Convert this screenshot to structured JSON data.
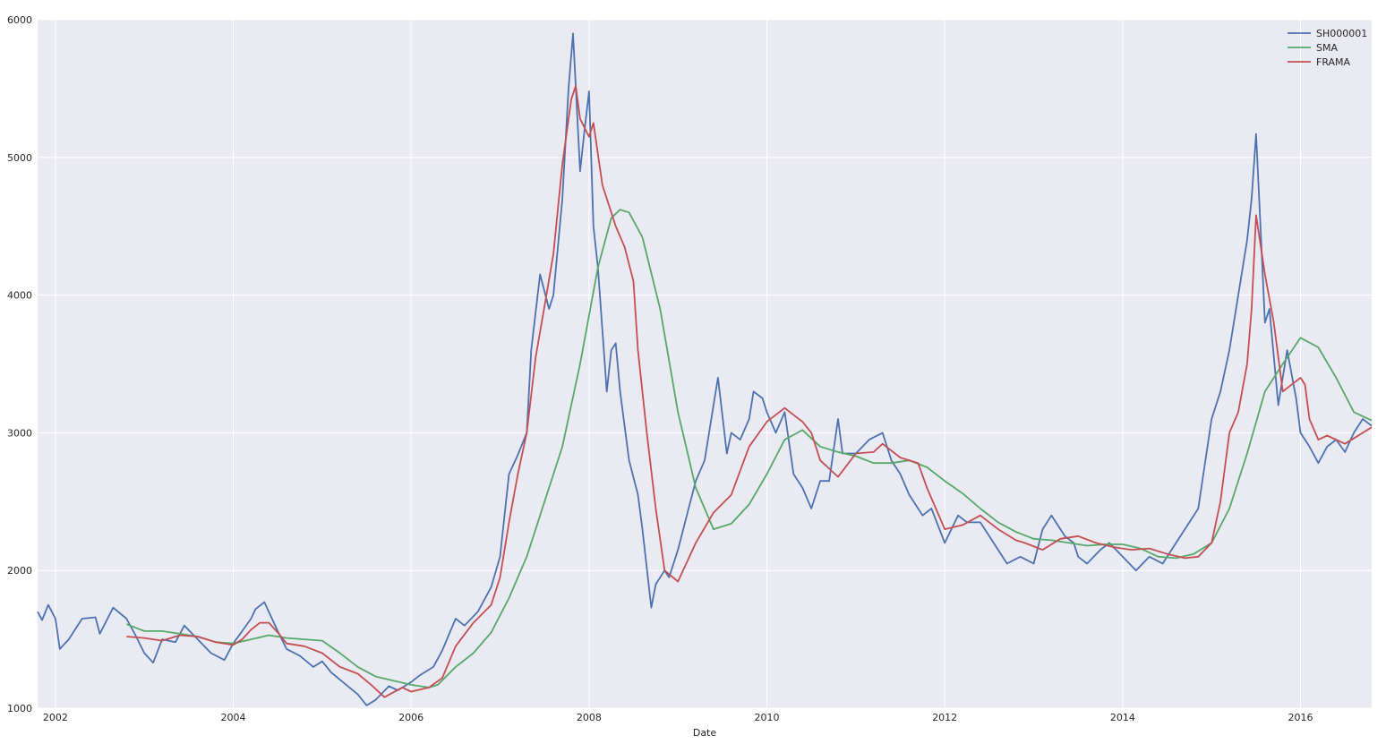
{
  "chart_data": {
    "type": "line",
    "title": "",
    "xlabel": "Date",
    "ylabel": "",
    "xlim": [
      2001.8,
      2016.8
    ],
    "ylim": [
      1000,
      6000
    ],
    "x_ticks": [
      2002,
      2004,
      2006,
      2008,
      2010,
      2012,
      2014,
      2016
    ],
    "x_tick_labels": [
      "2002",
      "2004",
      "2006",
      "2008",
      "2010",
      "2012",
      "2014",
      "2016"
    ],
    "y_ticks": [
      1000,
      2000,
      3000,
      4000,
      5000,
      6000
    ],
    "y_tick_labels": [
      "1000",
      "2000",
      "3000",
      "4000",
      "5000",
      "6000"
    ],
    "grid": true,
    "legend_position": "top-right",
    "series": [
      {
        "name": "SH000001",
        "color": "#4c72b0",
        "x": [
          2001.8,
          2001.85,
          2001.92,
          2002.0,
          2002.05,
          2002.15,
          2002.3,
          2002.45,
          2002.5,
          2002.65,
          2002.8,
          2002.9,
          2003.0,
          2003.1,
          2003.2,
          2003.35,
          2003.45,
          2003.6,
          2003.75,
          2003.9,
          2004.0,
          2004.1,
          2004.2,
          2004.25,
          2004.35,
          2004.5,
          2004.6,
          2004.75,
          2004.9,
          2005.0,
          2005.1,
          2005.25,
          2005.4,
          2005.5,
          2005.6,
          2005.75,
          2005.85,
          2006.0,
          2006.1,
          2006.25,
          2006.35,
          2006.5,
          2006.6,
          2006.75,
          2006.9,
          2007.0,
          2007.1,
          2007.2,
          2007.3,
          2007.35,
          2007.45,
          2007.55,
          2007.6,
          2007.7,
          2007.77,
          2007.82,
          2007.9,
          2007.95,
          2008.0,
          2008.05,
          2008.1,
          2008.2,
          2008.25,
          2008.3,
          2008.35,
          2008.45,
          2008.55,
          2008.6,
          2008.7,
          2008.75,
          2008.85,
          2008.9,
          2009.0,
          2009.1,
          2009.2,
          2009.3,
          2009.4,
          2009.45,
          2009.55,
          2009.6,
          2009.7,
          2009.8,
          2009.85,
          2009.95,
          2010.0,
          2010.1,
          2010.2,
          2010.3,
          2010.4,
          2010.5,
          2010.6,
          2010.7,
          2010.8,
          2010.85,
          2011.0,
          2011.15,
          2011.3,
          2011.4,
          2011.5,
          2011.6,
          2011.75,
          2011.85,
          2012.0,
          2012.15,
          2012.25,
          2012.4,
          2012.55,
          2012.7,
          2012.85,
          2013.0,
          2013.1,
          2013.2,
          2013.35,
          2013.45,
          2013.5,
          2013.6,
          2013.75,
          2013.85,
          2014.0,
          2014.15,
          2014.3,
          2014.45,
          2014.6,
          2014.75,
          2014.85,
          2015.0,
          2015.1,
          2015.2,
          2015.3,
          2015.4,
          2015.45,
          2015.5,
          2015.55,
          2015.6,
          2015.65,
          2015.75,
          2015.85,
          2015.95,
          2016.0,
          2016.1,
          2016.2,
          2016.3,
          2016.4,
          2016.5,
          2016.6,
          2016.7,
          2016.8
        ],
        "y": [
          1700,
          1640,
          1750,
          1650,
          1430,
          1500,
          1650,
          1660,
          1540,
          1730,
          1650,
          1530,
          1400,
          1330,
          1500,
          1480,
          1600,
          1500,
          1400,
          1350,
          1470,
          1560,
          1650,
          1720,
          1770,
          1560,
          1430,
          1380,
          1300,
          1340,
          1260,
          1180,
          1100,
          1020,
          1060,
          1160,
          1130,
          1190,
          1240,
          1300,
          1420,
          1650,
          1600,
          1700,
          1880,
          2100,
          2700,
          2840,
          3000,
          3600,
          4150,
          3900,
          4000,
          4700,
          5500,
          5900,
          4900,
          5200,
          5480,
          4500,
          4200,
          3300,
          3600,
          3650,
          3300,
          2800,
          2550,
          2300,
          1730,
          1900,
          2000,
          1950,
          2150,
          2400,
          2650,
          2800,
          3200,
          3400,
          2850,
          3000,
          2950,
          3100,
          3300,
          3250,
          3150,
          3000,
          3150,
          2700,
          2600,
          2450,
          2650,
          2650,
          3100,
          2850,
          2850,
          2950,
          3000,
          2800,
          2700,
          2550,
          2400,
          2450,
          2200,
          2400,
          2350,
          2350,
          2200,
          2050,
          2100,
          2050,
          2300,
          2400,
          2250,
          2200,
          2100,
          2050,
          2150,
          2200,
          2100,
          2000,
          2100,
          2050,
          2200,
          2350,
          2450,
          3100,
          3300,
          3600,
          4000,
          4400,
          4700,
          5170,
          4500,
          3800,
          3900,
          3200,
          3600,
          3250,
          3000,
          2900,
          2780,
          2900,
          2950,
          2860,
          3000,
          3100,
          3050
        ],
        "x_in_chart_units": true
      },
      {
        "name": "SMA",
        "color": "#55a868",
        "x": [
          2002.8,
          2003.0,
          2003.2,
          2003.4,
          2003.6,
          2003.8,
          2004.0,
          2004.2,
          2004.4,
          2004.6,
          2004.8,
          2005.0,
          2005.2,
          2005.4,
          2005.6,
          2005.8,
          2006.0,
          2006.2,
          2006.3,
          2006.5,
          2006.7,
          2006.9,
          2007.1,
          2007.3,
          2007.5,
          2007.7,
          2007.9,
          2008.1,
          2008.25,
          2008.35,
          2008.45,
          2008.6,
          2008.8,
          2009.0,
          2009.2,
          2009.4,
          2009.6,
          2009.8,
          2010.0,
          2010.2,
          2010.4,
          2010.6,
          2010.8,
          2011.0,
          2011.2,
          2011.4,
          2011.6,
          2011.8,
          2012.0,
          2012.2,
          2012.4,
          2012.6,
          2012.8,
          2013.0,
          2013.2,
          2013.4,
          2013.6,
          2013.8,
          2014.0,
          2014.2,
          2014.4,
          2014.6,
          2014.8,
          2015.0,
          2015.2,
          2015.4,
          2015.6,
          2015.8,
          2016.0,
          2016.2,
          2016.4,
          2016.6,
          2016.8
        ],
        "y": [
          1610,
          1560,
          1560,
          1540,
          1520,
          1480,
          1470,
          1500,
          1530,
          1510,
          1500,
          1490,
          1400,
          1300,
          1230,
          1200,
          1170,
          1150,
          1170,
          1300,
          1400,
          1550,
          1800,
          2100,
          2500,
          2900,
          3500,
          4200,
          4560,
          4620,
          4600,
          4420,
          3900,
          3150,
          2600,
          2300,
          2340,
          2480,
          2700,
          2950,
          3020,
          2900,
          2860,
          2830,
          2780,
          2780,
          2800,
          2750,
          2650,
          2560,
          2450,
          2350,
          2280,
          2230,
          2220,
          2200,
          2180,
          2190,
          2190,
          2160,
          2100,
          2090,
          2120,
          2200,
          2450,
          2850,
          3300,
          3500,
          3690,
          3620,
          3400,
          3150,
          3090
        ]
      },
      {
        "name": "FRAMA",
        "color": "#c44e52",
        "x": [
          2002.8,
          2003.0,
          2003.2,
          2003.4,
          2003.6,
          2003.8,
          2004.0,
          2004.1,
          2004.2,
          2004.3,
          2004.4,
          2004.5,
          2004.6,
          2004.8,
          2005.0,
          2005.2,
          2005.4,
          2005.55,
          2005.7,
          2005.9,
          2006.0,
          2006.2,
          2006.35,
          2006.5,
          2006.7,
          2006.9,
          2007.0,
          2007.1,
          2007.2,
          2007.3,
          2007.4,
          2007.5,
          2007.6,
          2007.7,
          2007.8,
          2007.85,
          2007.9,
          2008.0,
          2008.05,
          2008.15,
          2008.3,
          2008.4,
          2008.5,
          2008.55,
          2008.65,
          2008.75,
          2008.85,
          2009.0,
          2009.2,
          2009.4,
          2009.6,
          2009.8,
          2010.0,
          2010.2,
          2010.4,
          2010.5,
          2010.6,
          2010.8,
          2011.0,
          2011.2,
          2011.3,
          2011.5,
          2011.7,
          2011.8,
          2012.0,
          2012.2,
          2012.4,
          2012.6,
          2012.8,
          2012.9,
          2013.1,
          2013.3,
          2013.5,
          2013.7,
          2013.9,
          2014.1,
          2014.3,
          2014.5,
          2014.7,
          2014.85,
          2015.0,
          2015.1,
          2015.2,
          2015.3,
          2015.4,
          2015.45,
          2015.5,
          2015.6,
          2015.7,
          2015.8,
          2015.9,
          2016.0,
          2016.05,
          2016.1,
          2016.2,
          2016.3,
          2016.5,
          2016.8
        ],
        "y": [
          1520,
          1510,
          1490,
          1530,
          1520,
          1480,
          1460,
          1500,
          1570,
          1620,
          1620,
          1550,
          1470,
          1450,
          1400,
          1300,
          1250,
          1170,
          1080,
          1150,
          1120,
          1150,
          1220,
          1450,
          1620,
          1750,
          1950,
          2350,
          2700,
          3000,
          3550,
          3920,
          4300,
          4950,
          5420,
          5520,
          5280,
          5150,
          5250,
          4800,
          4500,
          4350,
          4100,
          3600,
          3000,
          2450,
          2000,
          1920,
          2200,
          2420,
          2550,
          2900,
          3080,
          3180,
          3080,
          3000,
          2800,
          2680,
          2850,
          2860,
          2920,
          2820,
          2780,
          2600,
          2300,
          2330,
          2400,
          2300,
          2220,
          2200,
          2150,
          2230,
          2250,
          2200,
          2170,
          2150,
          2160,
          2120,
          2090,
          2100,
          2200,
          2500,
          3000,
          3150,
          3500,
          3900,
          4580,
          4150,
          3800,
          3300,
          3350,
          3400,
          3350,
          3100,
          2950,
          2980,
          2920,
          3040
        ]
      }
    ]
  }
}
